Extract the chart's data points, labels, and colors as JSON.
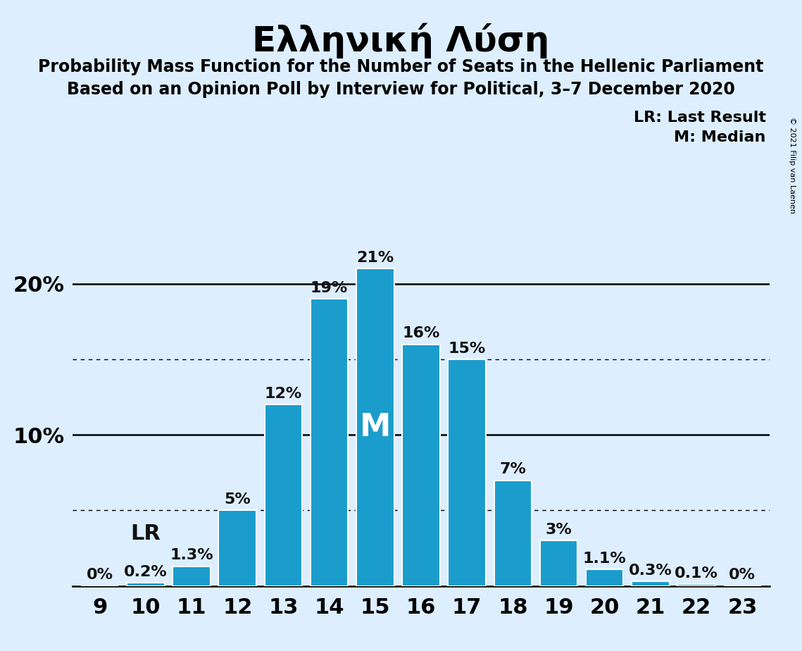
{
  "title": "Ελληνική Λύση",
  "subtitle1": "Probability Mass Function for the Number of Seats in the Hellenic Parliament",
  "subtitle2": "Based on an Opinion Poll by Interview for Political, 3–7 December 2020",
  "seats": [
    9,
    10,
    11,
    12,
    13,
    14,
    15,
    16,
    17,
    18,
    19,
    20,
    21,
    22,
    23
  ],
  "probabilities": [
    0.0,
    0.2,
    1.3,
    5.0,
    12.0,
    19.0,
    21.0,
    16.0,
    15.0,
    7.0,
    3.0,
    1.1,
    0.3,
    0.1,
    0.0
  ],
  "bar_color": "#1a9dcc",
  "background_color": "#ddeeff",
  "label_color": "#111111",
  "median_label_color": "#ffffff",
  "median_seat": 15,
  "lr_seat": 10,
  "legend_lr": "LR: Last Result",
  "legend_m": "M: Median",
  "copyright": "© 2021 Filip van Laenen",
  "bar_label_format": {
    "0.0_9": "0%",
    "0.2": "0.2%",
    "1.3": "1.3%",
    "5.0": "5%",
    "12.0": "12%",
    "19.0": "19%",
    "21.0": "21%",
    "16.0": "16%",
    "15.0": "15%",
    "7.0": "7%",
    "3.0": "3%",
    "1.1": "1.1%",
    "0.3": "0.3%",
    "0.1": "0.1%",
    "0.0_23": "0%"
  },
  "title_fontsize": 36,
  "subtitle_fontsize": 17,
  "ytick_fontsize": 22,
  "xtick_fontsize": 22,
  "bar_label_fontsize": 16,
  "legend_fontsize": 16,
  "median_fontsize": 32,
  "lr_fontsize": 22
}
